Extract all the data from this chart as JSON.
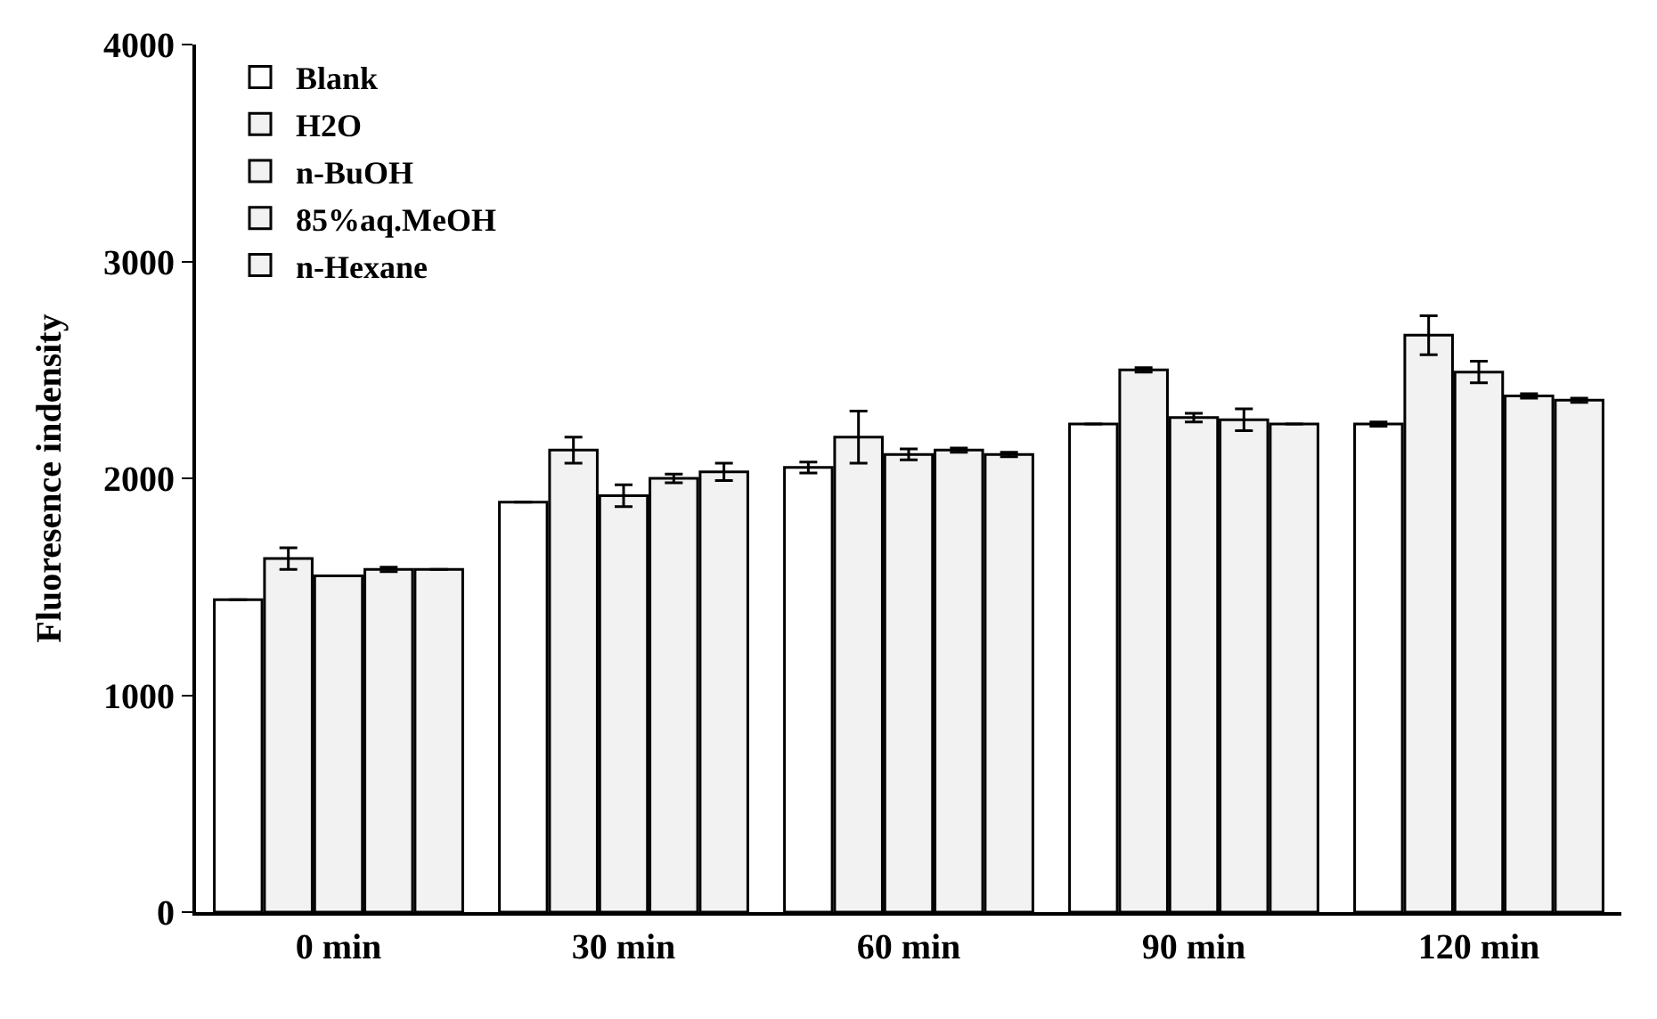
{
  "chart_data": {
    "type": "bar",
    "ylabel": "Fluoresence indensity",
    "categories": [
      "0 min",
      "30 min",
      "60 min",
      "90 min",
      "120 min"
    ],
    "series": [
      {
        "name": "Blank",
        "color": "#ffffff",
        "values": [
          1440,
          1890,
          2050,
          2250,
          2250
        ],
        "errors": [
          null,
          null,
          25,
          null,
          10
        ]
      },
      {
        "name": "H2O",
        "color": "#f2f2f2",
        "values": [
          1630,
          2130,
          2190,
          2500,
          2660
        ],
        "errors": [
          50,
          60,
          120,
          10,
          90
        ]
      },
      {
        "name": "n-BuOH",
        "color": "#f2f2f2",
        "values": [
          1550,
          1920,
          2110,
          2280,
          2490
        ],
        "errors": [
          null,
          50,
          25,
          20,
          50
        ]
      },
      {
        "name": "85%aq.MeOH",
        "color": "#f2f2f2",
        "values": [
          1580,
          2000,
          2130,
          2270,
          2380
        ],
        "errors": [
          10,
          20,
          10,
          50,
          10
        ]
      },
      {
        "name": "n-Hexane",
        "color": "#f2f2f2",
        "values": [
          1580,
          2030,
          2110,
          2250,
          2360
        ],
        "errors": [
          null,
          40,
          10,
          null,
          10
        ]
      }
    ],
    "ylim": [
      0,
      4000
    ],
    "yticks": [
      0,
      1000,
      2000,
      3000,
      4000
    ],
    "grid": false,
    "legend": "top left"
  }
}
